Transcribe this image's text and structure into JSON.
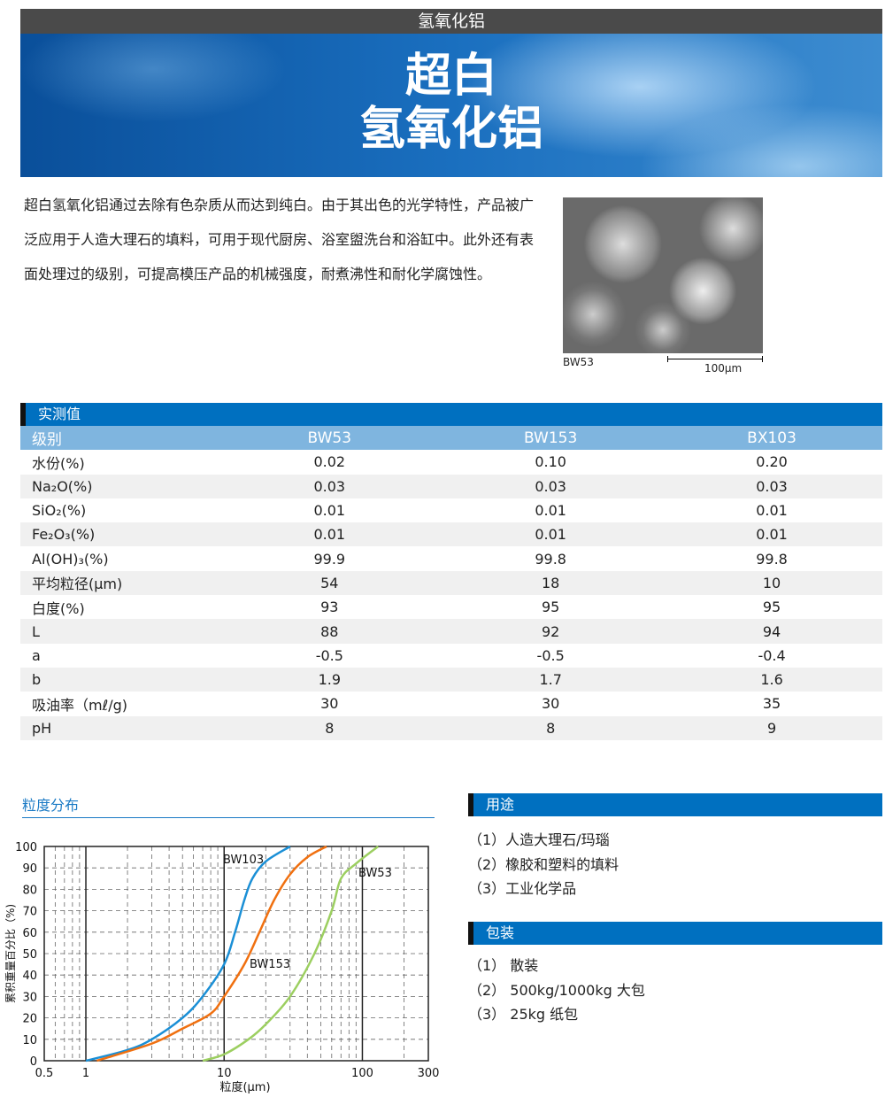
{
  "header": {
    "top": "氢氧化铝",
    "title1": "超白",
    "title2": "氢氧化铝"
  },
  "intro": "超白氢氧化铝通过去除有色杂质从而达到纯白。由于其出色的光学特性，产品被广泛应用于人造大理石的填料，可用于现代厨房、浴室盥洗台和浴缸中。此外还有表面处理过的级别，可提高模压产品的机械强度，耐煮沸性和耐化学腐蚀性。",
  "image": {
    "label": "BW53",
    "scale": "100μm"
  },
  "table": {
    "section": "实测值",
    "header": [
      "级别",
      "BW53",
      "BW153",
      "BX103"
    ],
    "rows": [
      [
        "水份(%)",
        "0.02",
        "0.10",
        "0.20"
      ],
      [
        "Na₂O(%)",
        "0.03",
        "0.03",
        "0.03"
      ],
      [
        "SiO₂(%)",
        "0.01",
        "0.01",
        "0.01"
      ],
      [
        "Fe₂O₃(%)",
        "0.01",
        "0.01",
        "0.01"
      ],
      [
        "Al(OH)₃(%)",
        "99.9",
        "99.8",
        "99.8"
      ],
      [
        "平均粒径(μm)",
        "54",
        "18",
        "10"
      ],
      [
        "白度(%)",
        "93",
        "95",
        "95"
      ],
      [
        "L",
        "88",
        "92",
        "94"
      ],
      [
        "a",
        "-0.5",
        "-0.5",
        "-0.4"
      ],
      [
        "b",
        "1.9",
        "1.7",
        "1.6"
      ],
      [
        "吸油率（mℓ/g)",
        "30",
        "30",
        "35"
      ],
      [
        "pH",
        "8",
        "8",
        "9"
      ]
    ]
  },
  "uses": {
    "title": "用途",
    "items": [
      "（1）人造大理石/玛瑙",
      "（2）橡胶和塑料的填料",
      "（3）工业化学品"
    ]
  },
  "packing": {
    "title": "包装",
    "items": [
      "（1） 散装",
      "（2） 500kg/1000kg 大包",
      "（3） 25kg 纸包"
    ]
  },
  "chart_data": {
    "type": "line",
    "title": "粒度分布",
    "xlabel": "粒度(μm)",
    "ylabel": "累积重量百分比（%)",
    "xscale": "log",
    "xlim": [
      0.5,
      300
    ],
    "ylim": [
      0,
      100
    ],
    "grid": true,
    "xticks": [
      "0.5",
      "1",
      "10",
      "100",
      "300"
    ],
    "yticks": [
      "0",
      "10",
      "20",
      "30",
      "40",
      "50",
      "60",
      "70",
      "80",
      "90",
      "100"
    ],
    "series": [
      {
        "name": "BW103",
        "color": "#1a8fd6",
        "x": [
          1,
          2,
          3,
          5,
          7,
          10,
          12,
          14,
          16,
          20,
          30
        ],
        "y": [
          0,
          5,
          10,
          20,
          30,
          45,
          60,
          75,
          85,
          93,
          100
        ]
      },
      {
        "name": "BW153",
        "color": "#f07010",
        "x": [
          1.2,
          3,
          5,
          8,
          10,
          14,
          18,
          23,
          30,
          40,
          55
        ],
        "y": [
          0,
          8,
          15,
          22,
          30,
          45,
          60,
          75,
          87,
          95,
          100
        ]
      },
      {
        "name": "BW53",
        "color": "#9ccf60",
        "x": [
          7,
          10,
          15,
          20,
          30,
          45,
          60,
          70,
          90,
          130
        ],
        "y": [
          0,
          3,
          10,
          17,
          30,
          50,
          70,
          85,
          92,
          100
        ]
      }
    ]
  }
}
